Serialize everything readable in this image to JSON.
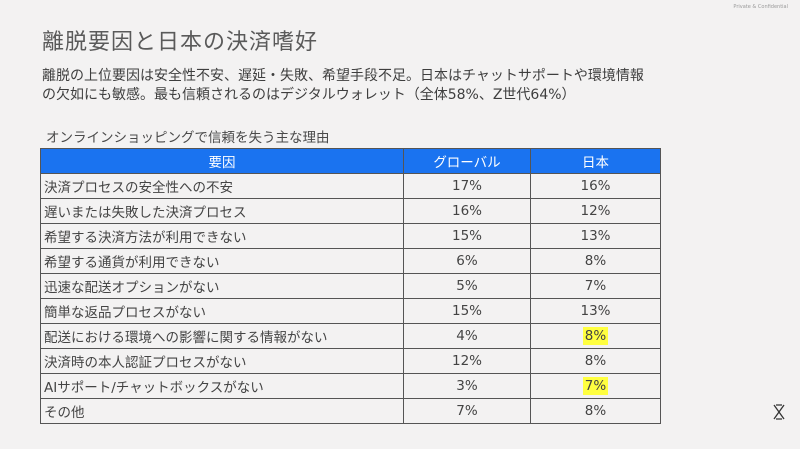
{
  "header": {
    "confidential": "Private & Confidential",
    "title": "離脱要因と日本の決済嗜好"
  },
  "summary": {
    "line1": "離脱の上位要因は安全性不安、遅延・失敗、希望手段不足。日本はチャットサポートや環境情報",
    "line2": "の欠如にも敏感。最も信頼されるのはデジタルウォレット（全体58%、Z世代64%）"
  },
  "table": {
    "caption": "オンラインショッピングで信頼を失う主な理由",
    "headers": [
      "要因",
      "グローバル",
      "日本"
    ],
    "rows": [
      {
        "reason": "決済プロセスの安全性への不安",
        "global": "17%",
        "japan": "16%",
        "highlight": false
      },
      {
        "reason": "遅いまたは失敗した決済プロセス",
        "global": "16%",
        "japan": "12%",
        "highlight": false
      },
      {
        "reason": "希望する決済方法が利用できない",
        "global": "15%",
        "japan": "13%",
        "highlight": false
      },
      {
        "reason": "希望する通貨が利用できない",
        "global": "6%",
        "japan": "8%",
        "highlight": false
      },
      {
        "reason": "迅速な配送オプションがない",
        "global": "5%",
        "japan": "7%",
        "highlight": false
      },
      {
        "reason": "簡単な返品プロセスがない",
        "global": "15%",
        "japan": "13%",
        "highlight": false
      },
      {
        "reason": "配送における環境への影響に関する情報がない",
        "global": "4%",
        "japan": "8%",
        "highlight": true
      },
      {
        "reason": "決済時の本人認証プロセスがない",
        "global": "12%",
        "japan": "8%",
        "highlight": false
      },
      {
        "reason": "AIサポート/チャットボックスがない",
        "global": "3%",
        "japan": "7%",
        "highlight": true
      },
      {
        "reason": "その他",
        "global": "7%",
        "japan": "8%",
        "highlight": false
      }
    ]
  },
  "colors": {
    "header_bg": "#1a73f0",
    "highlight": "#ffff40"
  },
  "icons": {
    "logo": "x-logo-icon"
  }
}
